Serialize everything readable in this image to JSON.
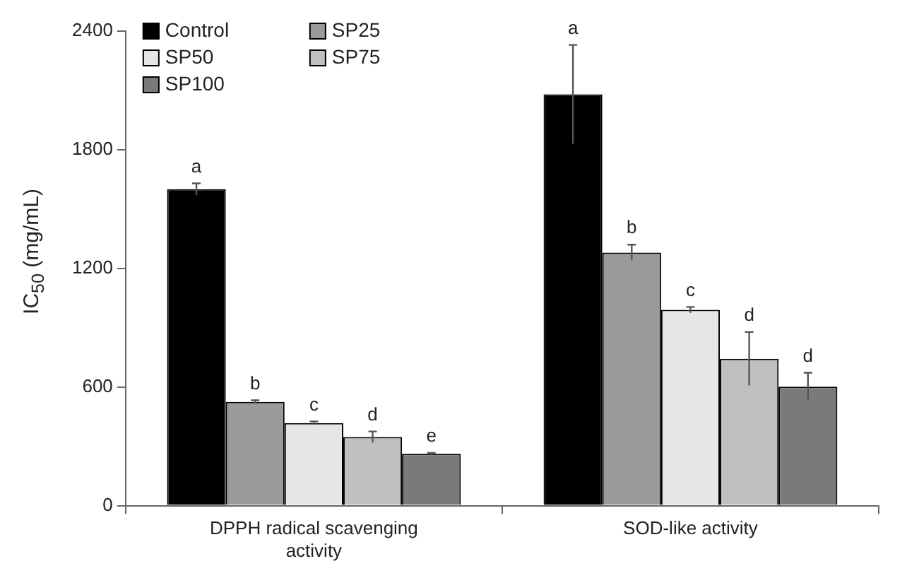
{
  "chart_data": {
    "type": "bar",
    "ylabel": "IC$_{50}$ (mg/mL)",
    "categories": [
      "DPPH radical scavenging activity",
      "SOD-like activity"
    ],
    "series": [
      {
        "name": "Control",
        "color": "#000000",
        "values": [
          1600,
          2080
        ],
        "errors": [
          30,
          250
        ],
        "value_labels": [
          "a",
          "a"
        ]
      },
      {
        "name": "SP25",
        "color": "#9a9a9a",
        "values": [
          525,
          1280
        ],
        "errors": [
          8,
          40
        ],
        "value_labels": [
          "b",
          "b"
        ]
      },
      {
        "name": "SP50",
        "color": "#e6e6e6",
        "values": [
          418,
          990
        ],
        "errors": [
          8,
          15
        ],
        "value_labels": [
          "c",
          "c"
        ]
      },
      {
        "name": "SP75",
        "color": "#c0c0c0",
        "values": [
          347,
          743
        ],
        "errors": [
          28,
          135
        ],
        "value_labels": [
          "d",
          "d"
        ]
      },
      {
        "name": "SP100",
        "color": "#7a7a7a",
        "values": [
          262,
          602
        ],
        "errors": [
          5,
          70
        ],
        "value_labels": [
          "e",
          "d"
        ]
      }
    ],
    "ylim": [
      0,
      2400
    ],
    "yticks": [
      0,
      600,
      1200,
      1800,
      2400
    ],
    "grid": false,
    "legend": "top left"
  }
}
